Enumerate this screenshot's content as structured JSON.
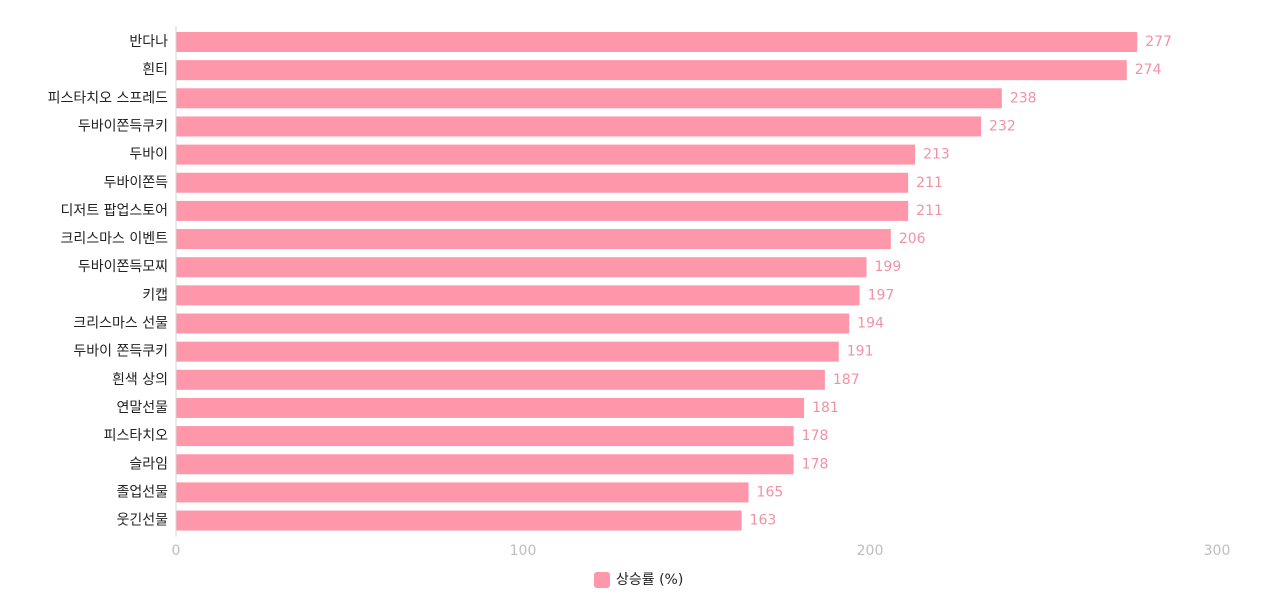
{
  "colors": {
    "bar": "#ff97aa",
    "value_label": "#f092a6",
    "axis_line": "#d6d6d6",
    "tick_label": "#bdbdbd",
    "text": "#222222"
  },
  "chart_data": {
    "type": "bar",
    "orientation": "horizontal",
    "categories": [
      "반다나",
      "흰티",
      "피스타치오 스프레드",
      "두바이쫀득쿠키",
      "두바이",
      "두바이쫀득",
      "디저트 팝업스토어",
      "크리스마스 이벤트",
      "두바이쫀득모찌",
      "키캡",
      "크리스마스 선물",
      "두바이 쫀득쿠키",
      "흰색 상의",
      "연말선물",
      "피스타치오",
      "슬라임",
      "졸업선물",
      "웃긴선물"
    ],
    "series": [
      {
        "name": "상승률 (%)",
        "values": [
          277,
          274,
          238,
          232,
          213,
          211,
          211,
          206,
          199,
          197,
          194,
          191,
          187,
          181,
          178,
          178,
          165,
          163
        ]
      }
    ],
    "xlim": [
      0,
      300
    ],
    "x_ticks": [
      0,
      100,
      200,
      300
    ],
    "grid": false,
    "legend_position": "bottom-center",
    "show_data_labels": true
  }
}
